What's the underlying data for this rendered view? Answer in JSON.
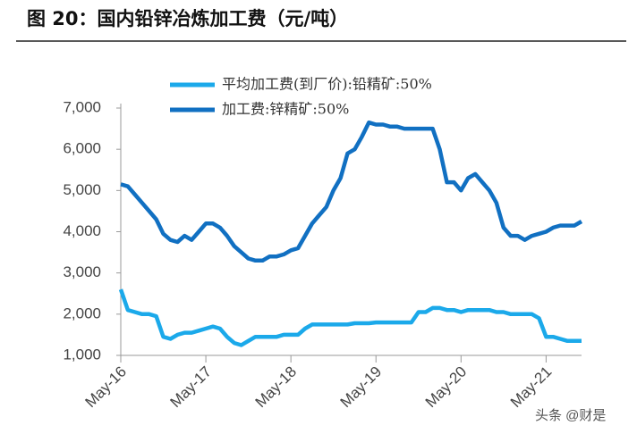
{
  "chart_data": {
    "type": "line",
    "title": "图 20：国内铅锌冶炼加工费（元/吨）",
    "watermark": "头条 @财是",
    "x": [
      "May-16",
      "Jun-16",
      "Jul-16",
      "Aug-16",
      "Sep-16",
      "Oct-16",
      "Nov-16",
      "Dec-16",
      "Jan-17",
      "Feb-17",
      "Mar-17",
      "Apr-17",
      "May-17",
      "Jun-17",
      "Jul-17",
      "Aug-17",
      "Sep-17",
      "Oct-17",
      "Nov-17",
      "Dec-17",
      "Jan-18",
      "Feb-18",
      "Mar-18",
      "Apr-18",
      "May-18",
      "Jun-18",
      "Jul-18",
      "Aug-18",
      "Sep-18",
      "Oct-18",
      "Nov-18",
      "Dec-18",
      "Jan-19",
      "Feb-19",
      "Mar-19",
      "Apr-19",
      "May-19",
      "Jun-19",
      "Jul-19",
      "Aug-19",
      "Sep-19",
      "Oct-19",
      "Nov-19",
      "Dec-19",
      "Jan-20",
      "Feb-20",
      "Mar-20",
      "Apr-20",
      "May-20",
      "Jun-20",
      "Jul-20",
      "Aug-20",
      "Sep-20",
      "Oct-20",
      "Nov-20",
      "Dec-20",
      "Jan-21",
      "Feb-21",
      "Mar-21",
      "Apr-21",
      "May-21",
      "Jun-21",
      "Jul-21",
      "Aug-21",
      "Sep-21",
      "Oct-21"
    ],
    "series": [
      {
        "name": "平均加工费(到厂价):铅精矿:50%",
        "color": "#1ba9ea",
        "values": [
          2600,
          2100,
          2050,
          2000,
          2000,
          1950,
          1450,
          1400,
          1500,
          1550,
          1550,
          1600,
          1650,
          1700,
          1650,
          1450,
          1300,
          1250,
          1350,
          1450,
          1450,
          1450,
          1450,
          1500,
          1500,
          1500,
          1650,
          1750,
          1750,
          1750,
          1750,
          1750,
          1750,
          1780,
          1780,
          1780,
          1800,
          1800,
          1800,
          1800,
          1800,
          1800,
          2050,
          2050,
          2150,
          2150,
          2100,
          2100,
          2050,
          2100,
          2100,
          2100,
          2100,
          2050,
          2050,
          2000,
          2000,
          2000,
          2000,
          1900,
          1450,
          1450,
          1400,
          1350,
          1350,
          1350
        ]
      },
      {
        "name": "加工费:锌精矿:50%",
        "color": "#1170c2",
        "values": [
          5150,
          5100,
          4900,
          4700,
          4500,
          4300,
          3950,
          3800,
          3750,
          3900,
          3800,
          4000,
          4200,
          4200,
          4100,
          3900,
          3650,
          3500,
          3350,
          3300,
          3300,
          3400,
          3400,
          3450,
          3550,
          3600,
          3900,
          4200,
          4400,
          4600,
          5000,
          5300,
          5900,
          6000,
          6300,
          6650,
          6600,
          6600,
          6550,
          6550,
          6500,
          6500,
          6500,
          6500,
          6500,
          6000,
          5200,
          5200,
          5000,
          5300,
          5400,
          5200,
          5000,
          4700,
          4100,
          3900,
          3900,
          3800,
          3900,
          3950,
          4000,
          4100,
          4150,
          4150,
          4150,
          4250
        ]
      }
    ],
    "xlim": [
      "May-16",
      "Oct-21"
    ],
    "xticks": [
      "May-16",
      "May-17",
      "May-18",
      "May-19",
      "May-20",
      "May-21"
    ],
    "ylim": [
      1000,
      7000
    ],
    "yticks": [
      {
        "value": 1000,
        "label": "1,000"
      },
      {
        "value": 2000,
        "label": "2,000"
      },
      {
        "value": 3000,
        "label": "3,000"
      },
      {
        "value": 4000,
        "label": "4,000"
      },
      {
        "value": 5000,
        "label": "5,000"
      },
      {
        "value": 6000,
        "label": "6,000"
      },
      {
        "value": 7000,
        "label": "7,000"
      }
    ],
    "legend": "top"
  }
}
